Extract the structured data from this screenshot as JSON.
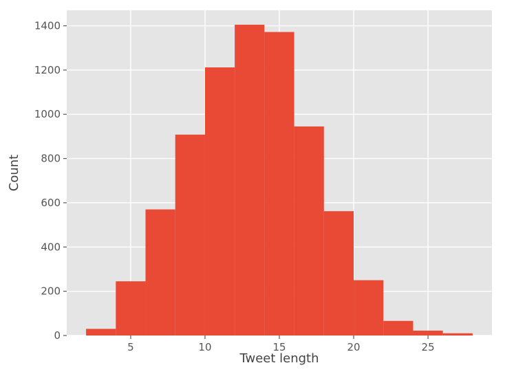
{
  "chart_data": {
    "type": "bar",
    "style": "histogram",
    "xlabel": "Tweet length",
    "ylabel": "Count",
    "xlim": [
      0.7,
      29.3
    ],
    "ylim": [
      0,
      1470
    ],
    "xticks": [
      5,
      10,
      15,
      20,
      25
    ],
    "yticks": [
      0,
      200,
      400,
      600,
      800,
      1000,
      1200,
      1400
    ],
    "grid": true,
    "colors": {
      "bar": "#E84A35",
      "plot_background": "#E5E5E5",
      "grid": "#FFFFFF"
    },
    "bins": [
      {
        "start": 2,
        "end": 4,
        "count": 30
      },
      {
        "start": 4,
        "end": 6,
        "count": 245
      },
      {
        "start": 6,
        "end": 8,
        "count": 570
      },
      {
        "start": 8,
        "end": 10,
        "count": 908
      },
      {
        "start": 10,
        "end": 12,
        "count": 1212
      },
      {
        "start": 12,
        "end": 14,
        "count": 1405
      },
      {
        "start": 14,
        "end": 16,
        "count": 1372
      },
      {
        "start": 16,
        "end": 18,
        "count": 945
      },
      {
        "start": 18,
        "end": 20,
        "count": 562
      },
      {
        "start": 20,
        "end": 22,
        "count": 250
      },
      {
        "start": 22,
        "end": 24,
        "count": 66
      },
      {
        "start": 24,
        "end": 26,
        "count": 22
      },
      {
        "start": 26,
        "end": 28,
        "count": 10
      }
    ]
  }
}
